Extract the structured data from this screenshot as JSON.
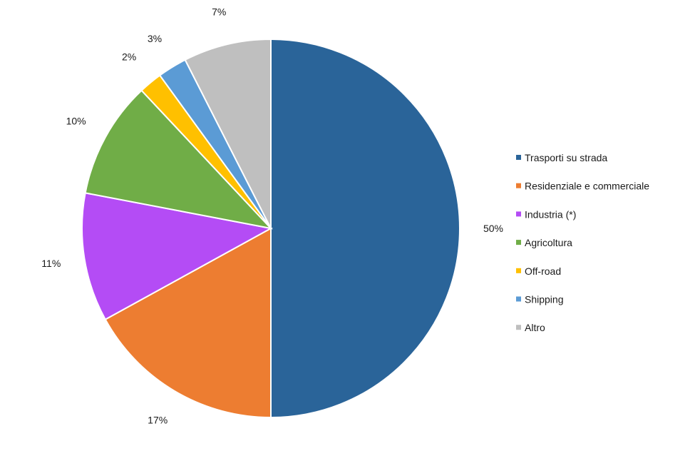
{
  "chart_data": {
    "type": "pie",
    "title": "",
    "legend_position": "right",
    "slices": [
      {
        "label": "Trasporti su strada",
        "value": 50,
        "display": "50%",
        "color": "#2a6499"
      },
      {
        "label": "Residenziale e commerciale",
        "value": 17,
        "display": "17%",
        "color": "#ed7d31"
      },
      {
        "label": "Industria (*)",
        "value": 11,
        "display": "11%",
        "color": "#b44cf5"
      },
      {
        "label": "Agricoltura",
        "value": 10,
        "display": "10%",
        "color": "#70ad47"
      },
      {
        "label": "Off-road",
        "value": 2,
        "display": "2%",
        "color": "#ffc000"
      },
      {
        "label": "Shipping",
        "value": 2.5,
        "display": "3%",
        "color": "#5b9bd5"
      },
      {
        "label": "Altro",
        "value": 7.5,
        "display": "7%",
        "color": "#bfbfbf"
      }
    ]
  }
}
